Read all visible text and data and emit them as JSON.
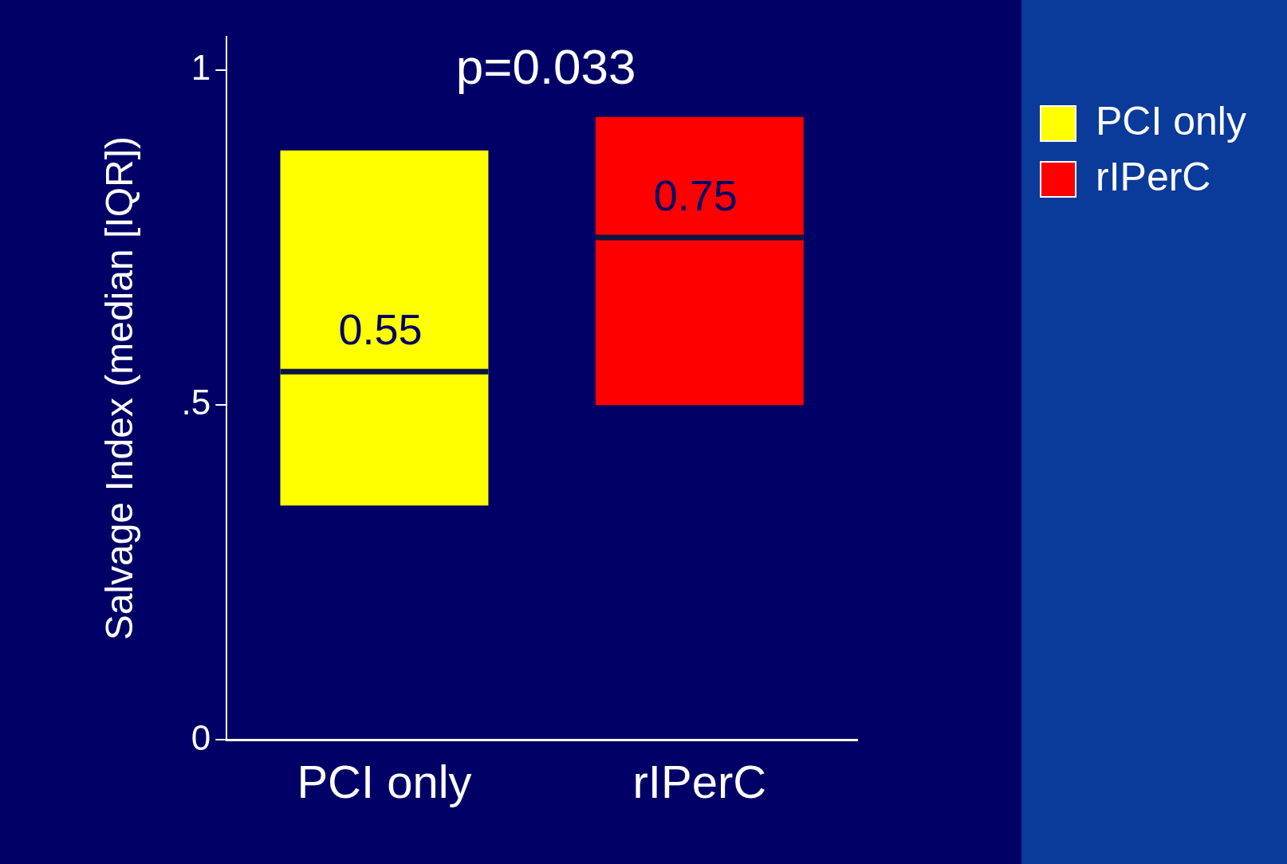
{
  "chart_data": {
    "type": "box",
    "ylabel": "Salvage Index (median [IQR])",
    "categories": [
      "PCI only",
      "rIPerC"
    ],
    "series": [
      {
        "name": "PCI only",
        "color": "#ffff00",
        "boxes": [
          {
            "low": 0.35,
            "q1": 0.35,
            "median": 0.55,
            "q3": 0.88,
            "high": 0.88
          },
          null
        ]
      },
      {
        "name": "rIPerC",
        "color": "#ff0000",
        "boxes": [
          null,
          {
            "low": 0.5,
            "q1": 0.5,
            "median": 0.75,
            "q3": 0.93,
            "high": 0.93
          }
        ]
      }
    ],
    "ylim": [
      0,
      1.05
    ],
    "yticks": [
      0,
      {
        "value": 0.5,
        "label": ".5"
      },
      1
    ],
    "legend": "right",
    "grid": false,
    "annotations": [
      "p=0.033",
      {
        "text": "0.55",
        "x": "PCI only",
        "y": 0.55
      },
      {
        "text": "0.75",
        "x": "rIPerC",
        "y": 0.75
      }
    ]
  }
}
